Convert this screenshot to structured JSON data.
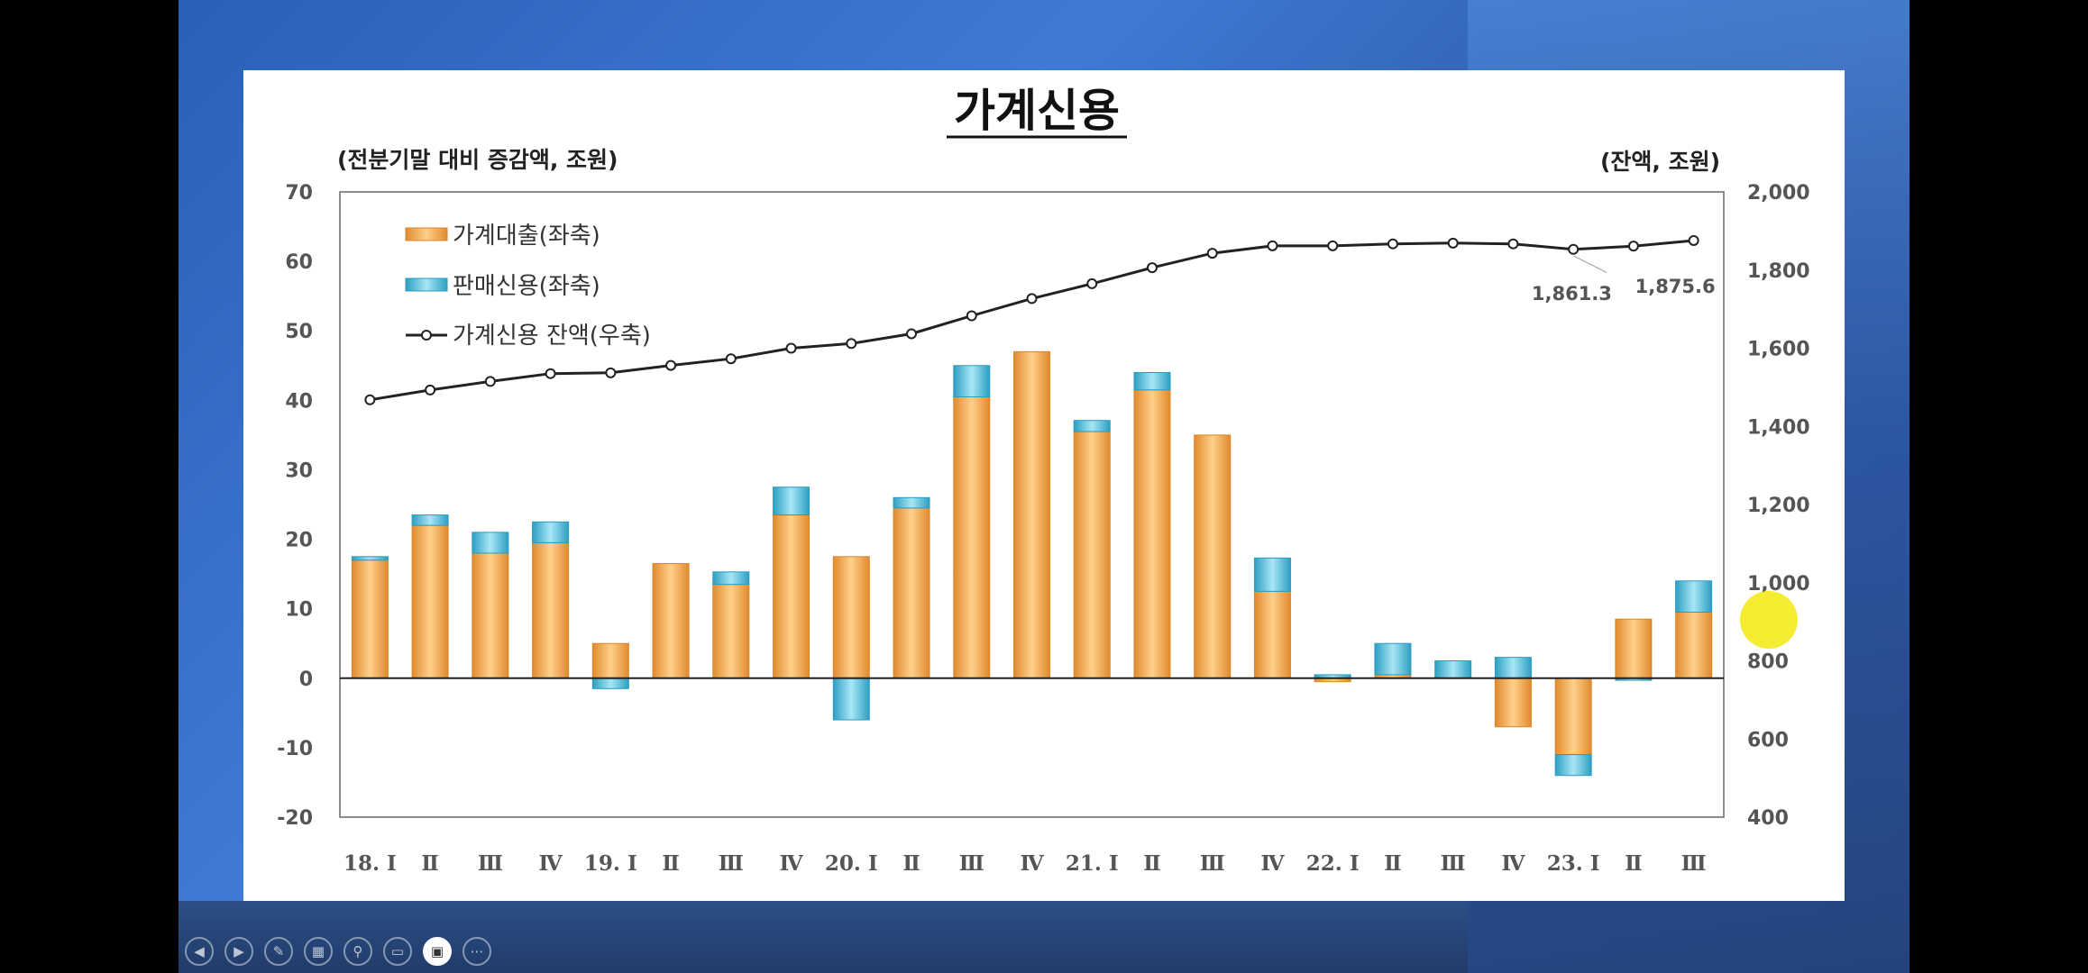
{
  "chart_data": {
    "type": "bar",
    "title": "가계신용",
    "ylabel_left": "(전분기말 대비 증감액, 조원)",
    "ylabel_right": "(잔액, 조원)",
    "ylim_left": [
      -20,
      70
    ],
    "ylim_right": [
      400,
      2000
    ],
    "left_ticks": [
      "70",
      "60",
      "50",
      "40",
      "30",
      "20",
      "10",
      "0",
      "-10",
      "-20"
    ],
    "right_ticks": [
      "2,000",
      "1,800",
      "1,600",
      "1,400",
      "1,200",
      "1,000",
      "800",
      "600",
      "400"
    ],
    "categories": [
      "18. Ⅰ",
      "Ⅱ",
      "Ⅲ",
      "Ⅳ",
      "19. Ⅰ",
      "Ⅱ",
      "Ⅲ",
      "Ⅳ",
      "20. Ⅰ",
      "Ⅱ",
      "Ⅲ",
      "Ⅳ",
      "21. Ⅰ",
      "Ⅱ",
      "Ⅲ",
      "Ⅳ",
      "22. Ⅰ",
      "Ⅱ",
      "Ⅲ",
      "Ⅳ",
      "23. Ⅰ",
      "Ⅱ",
      "Ⅲ"
    ],
    "series": [
      {
        "name": "가계대출(좌축)",
        "kind": "bar",
        "color": "#f6b060",
        "values": [
          17,
          22,
          18,
          19.5,
          5,
          16.5,
          13.5,
          23.5,
          17.5,
          24.5,
          40.5,
          47,
          35.5,
          41.5,
          35,
          12.5,
          -0.5,
          0.5,
          0,
          -7,
          -11,
          8.5,
          9.5
        ]
      },
      {
        "name": "판매신용(좌축)",
        "kind": "bar",
        "color": "#5cc4e0",
        "values": [
          0.5,
          1.5,
          3,
          3,
          -1.5,
          0,
          1.8,
          4,
          -6,
          1.5,
          4.5,
          0,
          1.6,
          2.5,
          0,
          4.8,
          0.5,
          4.5,
          2.5,
          3,
          -3,
          -0.3,
          4.5
        ]
      },
      {
        "name": "가계신용 잔액(우축)",
        "kind": "line",
        "color": "#222",
        "values": [
          1468,
          1493,
          1515,
          1535,
          1537,
          1556,
          1573,
          1600,
          1612,
          1637,
          1683,
          1727,
          1765,
          1806,
          1843,
          1862,
          1862,
          1867,
          1869,
          1867,
          1853,
          1861.3,
          1875.6
        ]
      }
    ],
    "data_labels": [
      "1,861.3",
      "1,875.6"
    ]
  },
  "toolbar": [
    "prev-icon",
    "next-icon",
    "pen-icon",
    "slides-icon",
    "zoom-icon",
    "subtitles-icon",
    "camera-icon",
    "more-icon"
  ],
  "toolbar_glyphs": [
    "◀",
    "▶",
    "✎",
    "▦",
    "⚲",
    "▭",
    "▣",
    "⋯"
  ]
}
